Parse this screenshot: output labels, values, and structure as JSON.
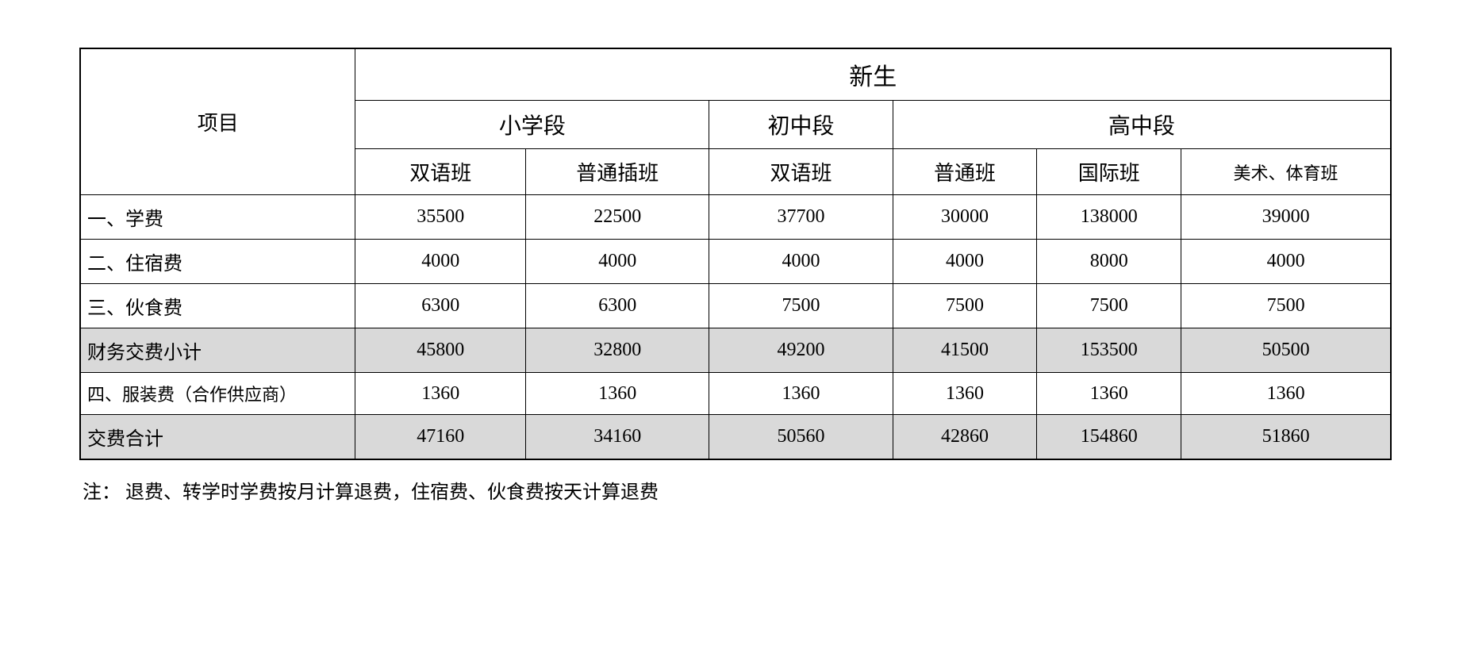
{
  "table": {
    "header": {
      "project_label": "项目",
      "top": "新生",
      "levels": [
        "小学段",
        "初中段",
        "高中段"
      ],
      "classes": [
        "双语班",
        "普通插班",
        "双语班",
        "普通班",
        "国际班",
        "美术、体育班"
      ]
    },
    "rows": [
      {
        "label": "一、学费",
        "values": [
          "35500",
          "22500",
          "37700",
          "30000",
          "138000",
          "39000"
        ],
        "shaded": false
      },
      {
        "label": "二、住宿费",
        "values": [
          "4000",
          "4000",
          "4000",
          "4000",
          "8000",
          "4000"
        ],
        "shaded": false
      },
      {
        "label": "三、伙食费",
        "values": [
          "6300",
          "6300",
          "7500",
          "7500",
          "7500",
          "7500"
        ],
        "shaded": false
      },
      {
        "label": "财务交费小计",
        "values": [
          "45800",
          "32800",
          "49200",
          "41500",
          "153500",
          "50500"
        ],
        "shaded": true
      },
      {
        "label": "四、服装费（合作供应商）",
        "values": [
          "1360",
          "1360",
          "1360",
          "1360",
          "1360",
          "1360"
        ],
        "shaded": false,
        "small_label": true
      },
      {
        "label": "交费合计",
        "values": [
          "47160",
          "34160",
          "50560",
          "42860",
          "154860",
          "51860"
        ],
        "shaded": true
      }
    ]
  },
  "note": "注：  退费、转学时学费按月计算退费，住宿费、伙食费按天计算退费",
  "styling": {
    "border_color": "#000000",
    "background_color": "#ffffff",
    "shaded_color": "#d9d9d9",
    "text_color": "#000000",
    "column_widths": [
      "21%",
      "13%",
      "14%",
      "14%",
      "11%",
      "11%",
      "16%"
    ]
  }
}
